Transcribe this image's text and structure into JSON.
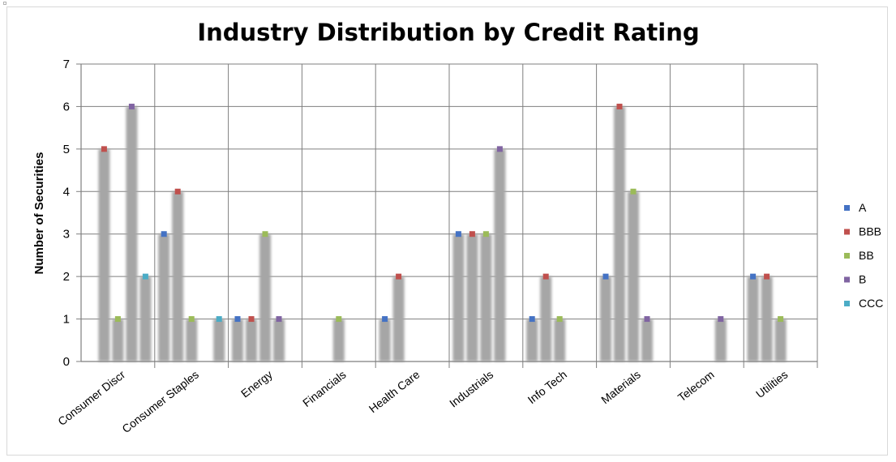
{
  "chart_data": {
    "type": "bar",
    "title": "Industry Distribution by Credit Rating",
    "xlabel": "",
    "ylabel": "Number of Securities",
    "ylim": [
      0,
      7
    ],
    "yticks": [
      0,
      1,
      2,
      3,
      4,
      5,
      6,
      7
    ],
    "grid": true,
    "legend_position": "right",
    "categories": [
      "Consumer Discr",
      "Consumer Staples",
      "Energy",
      "Financials",
      "Health Care",
      "Industrials",
      "Info Tech",
      "Materials",
      "Telecom",
      "Utilities"
    ],
    "series": [
      {
        "name": "A",
        "color": "#4472c4",
        "values": [
          0,
          3,
          1,
          0,
          1,
          3,
          1,
          2,
          0,
          2
        ]
      },
      {
        "name": "BBB",
        "color": "#c0504d",
        "values": [
          5,
          4,
          1,
          0,
          2,
          3,
          2,
          6,
          0,
          2
        ]
      },
      {
        "name": "BB",
        "color": "#9bbb59",
        "values": [
          1,
          1,
          3,
          1,
          0,
          3,
          1,
          4,
          0,
          1
        ]
      },
      {
        "name": "B",
        "color": "#8064a2",
        "values": [
          6,
          0,
          1,
          0,
          0,
          5,
          0,
          1,
          1,
          0
        ]
      },
      {
        "name": "CCC",
        "color": "#4bacc6",
        "values": [
          2,
          1,
          0,
          0,
          0,
          0,
          0,
          0,
          0,
          0
        ]
      }
    ],
    "bar_color": "#a6a6a6"
  }
}
